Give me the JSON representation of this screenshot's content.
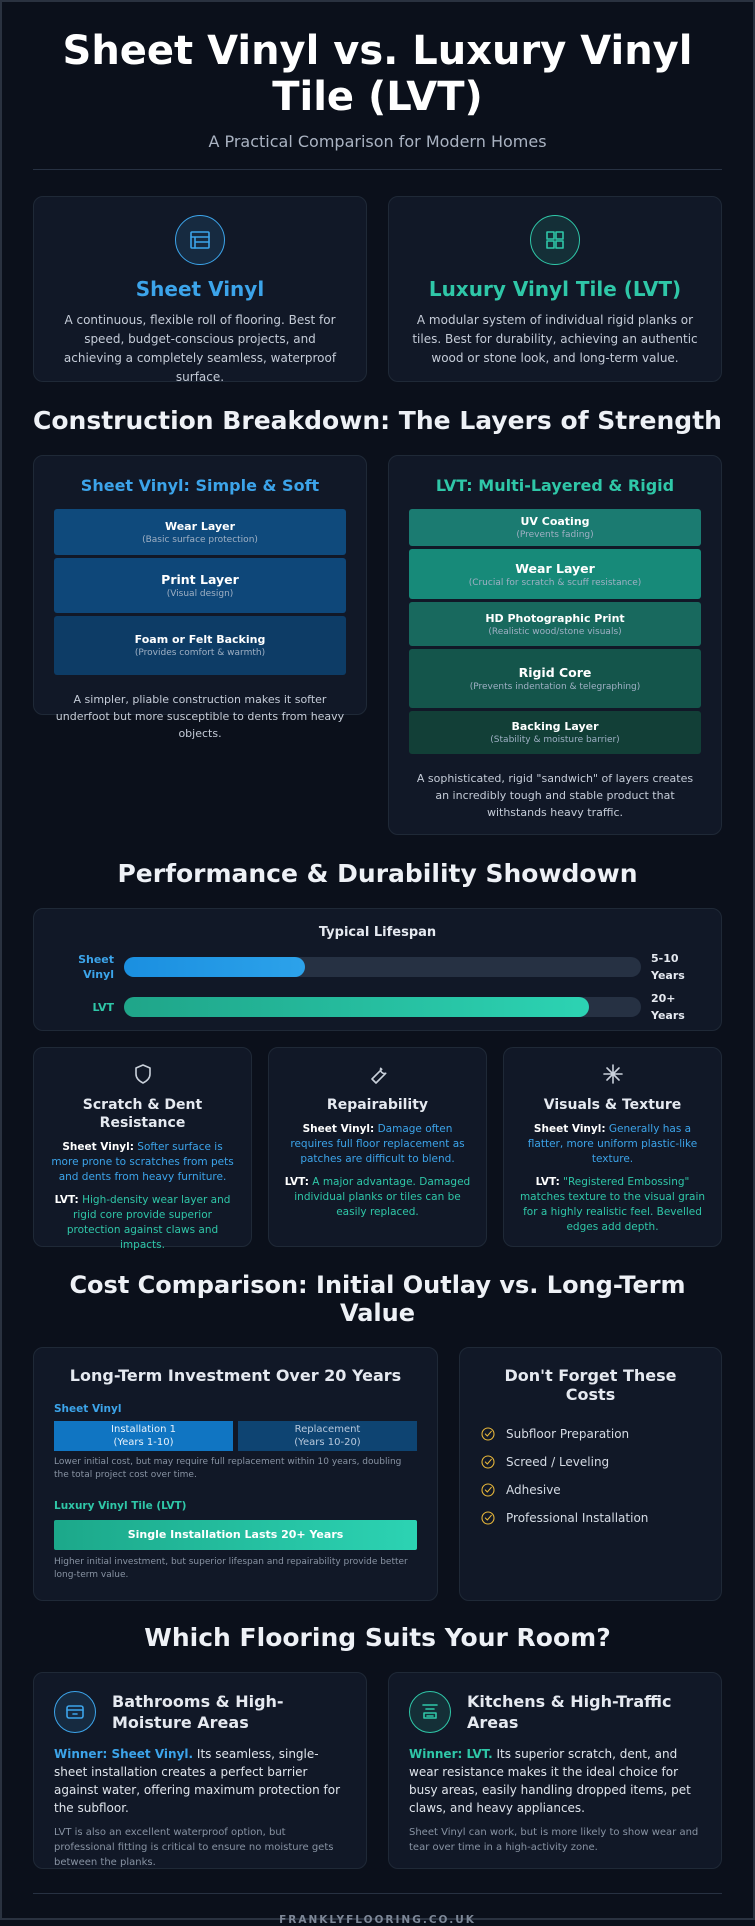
{
  "header": {
    "title": "Sheet Vinyl vs. Luxury Vinyl Tile (LVT)",
    "subtitle": "A Practical Comparison for Modern Homes"
  },
  "intro": [
    {
      "title": "Sheet Vinyl",
      "text": "A continuous, flexible roll of flooring. Best for speed, budget-conscious projects, and achieving a completely seamless, waterproof surface."
    },
    {
      "title": "Luxury Vinyl Tile (LVT)",
      "text": "A modular system of individual rigid planks or tiles. Best for durability, achieving an authentic wood or stone look, and long-term value."
    }
  ],
  "construction": {
    "heading": "Construction Breakdown: The Layers of Strength",
    "columns": [
      {
        "title": "Sheet Vinyl: Simple & Soft",
        "layers": [
          {
            "name": "Wear Layer",
            "note": "(Basic surface protection)"
          },
          {
            "name": "Print Layer",
            "note": "(Visual design)"
          },
          {
            "name": "Foam or Felt Backing",
            "note": "(Provides comfort & warmth)"
          }
        ],
        "summary": "A simpler, pliable construction makes it softer underfoot but more susceptible to dents from heavy objects."
      },
      {
        "title": "LVT: Multi-Layered & Rigid",
        "layers": [
          {
            "name": "UV Coating",
            "note": "(Prevents fading)"
          },
          {
            "name": "Wear Layer",
            "note": "(Crucial for scratch & scuff resistance)"
          },
          {
            "name": "HD Photographic Print",
            "note": "(Realistic wood/stone visuals)"
          },
          {
            "name": "Rigid Core",
            "note": "(Prevents indentation & telegraphing)"
          },
          {
            "name": "Backing Layer",
            "note": "(Stability & moisture barrier)"
          }
        ],
        "summary": "A sophisticated, rigid \"sandwich\" of layers creates an incredibly tough and stable product that withstands heavy traffic."
      }
    ]
  },
  "performance": {
    "heading": "Performance & Durability Showdown",
    "lifespan": {
      "title": "Typical Lifespan",
      "rows": [
        {
          "label": "Sheet Vinyl",
          "value": "5-10 Years"
        },
        {
          "label": "LVT",
          "value": "20+ Years"
        }
      ]
    },
    "cards": [
      {
        "title": "Scratch & Dent Resistance",
        "sheet_lead": "Sheet Vinyl:",
        "sheet": "Softer surface is more prone to scratches from pets and dents from heavy furniture.",
        "lvt_lead": "LVT:",
        "lvt": "High-density wear layer and rigid core provide superior protection against claws and impacts."
      },
      {
        "title": "Repairability",
        "sheet_lead": "Sheet Vinyl:",
        "sheet": "Damage often requires full floor replacement as patches are difficult to blend.",
        "lvt_lead": "LVT:",
        "lvt": "A major advantage. Damaged individual planks or tiles can be easily replaced."
      },
      {
        "title": "Visuals & Texture",
        "sheet_lead": "Sheet Vinyl:",
        "sheet": "Generally has a flatter, more uniform plastic-like texture.",
        "lvt_lead": "LVT:",
        "lvt": "\"Registered Embossing\" matches texture to the visual grain for a highly realistic feel. Bevelled edges add depth."
      }
    ]
  },
  "cost": {
    "heading": "Cost Comparison: Initial Outlay vs. Long-Term Value",
    "investment": {
      "title": "Long-Term Investment Over 20 Years",
      "sheet_label": "Sheet Vinyl",
      "sheet_bars": [
        {
          "name": "Installation 1",
          "years": "(Years 1-10)"
        },
        {
          "name": "Replacement",
          "years": "(Years 10-20)"
        }
      ],
      "sheet_note": "Lower initial cost, but may require full replacement within 10 years, doubling the total project cost over time.",
      "lvt_label": "Luxury Vinyl Tile (LVT)",
      "lvt_bar": "Single Installation Lasts 20+ Years",
      "lvt_note": "Higher initial investment, but superior lifespan and repairability provide better long-term value."
    },
    "extras": {
      "title": "Don't Forget These Costs",
      "items": [
        "Subfloor Preparation",
        "Screed / Leveling",
        "Adhesive",
        "Professional Installation"
      ]
    }
  },
  "rooms": {
    "heading": "Which Flooring Suits Your Room?",
    "cards": [
      {
        "title": "Bathrooms & High-Moisture Areas",
        "winner": "Winner: Sheet Vinyl.",
        "text": "Its seamless, single-sheet installation creates a perfect barrier against water, offering maximum protection for the subfloor.",
        "note": "LVT is also an excellent waterproof option, but professional fitting is critical to ensure no moisture gets between the planks."
      },
      {
        "title": "Kitchens & High-Traffic Areas",
        "winner": "Winner: LVT.",
        "text": "Its superior scratch, dent, and wear resistance makes it the ideal choice for busy areas, easily handling dropped items, pet claws, and heavy appliances.",
        "note": "Sheet Vinyl can work, but is more likely to show wear and tear over time in a high-activity zone."
      }
    ]
  },
  "footer": {
    "text": "FRANKLYFLOORING.CO.UK"
  }
}
